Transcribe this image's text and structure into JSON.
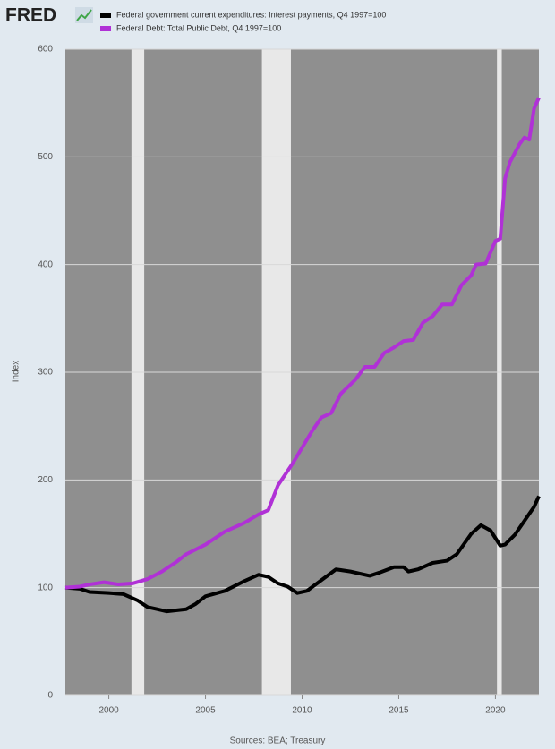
{
  "logo": "FRED",
  "chart_data": {
    "type": "line",
    "y_label": "Index",
    "source": "Sources: BEA; Treasury",
    "xlim": [
      1997.75,
      2022.25
    ],
    "xticks": [
      2000,
      2005,
      2010,
      2015,
      2020
    ],
    "ylim": [
      0,
      600
    ],
    "yticks": [
      0,
      100,
      200,
      300,
      400,
      500,
      600
    ],
    "grid": true,
    "recessions": [
      [
        2001.17,
        2001.83
      ],
      [
        2007.92,
        2009.42
      ],
      [
        2020.08,
        2020.33
      ]
    ],
    "series": [
      {
        "name": "Federal government current expenditures: Interest payments, Q4 1997=100",
        "color": "#000000",
        "x": [
          1997.75,
          1998.5,
          1999,
          2000,
          2000.75,
          2001.5,
          2002,
          2002.5,
          2003,
          2004,
          2004.5,
          2005,
          2006,
          2007,
          2007.75,
          2008.25,
          2008.75,
          2009.25,
          2009.75,
          2010.25,
          2011,
          2011.75,
          2012.5,
          2013.5,
          2014,
          2014.75,
          2015.25,
          2015.5,
          2016,
          2016.75,
          2017.5,
          2018,
          2018.75,
          2019.25,
          2019.75,
          2020.25,
          2020.5,
          2021,
          2021.5,
          2022,
          2022.25
        ],
        "values": [
          100,
          99,
          96,
          95,
          94,
          88,
          82,
          80,
          78,
          80,
          85,
          92,
          97,
          106,
          112,
          110,
          104,
          101,
          95,
          97,
          107,
          117,
          115,
          111,
          114,
          119,
          119,
          115,
          117,
          123,
          125,
          131,
          150,
          158,
          153,
          139,
          140,
          149,
          162,
          175,
          185
        ]
      },
      {
        "name": "Federal Debt: Total Public Debt, Q4 1997=100",
        "color": "#b031d6",
        "x": [
          1997.75,
          1998.5,
          1999,
          1999.75,
          2000.5,
          2001.25,
          2002,
          2002.75,
          2003.5,
          2004,
          2005,
          2005.5,
          2006,
          2007,
          2007.75,
          2008.25,
          2008.75,
          2009.5,
          2010,
          2010.5,
          2011,
          2011.5,
          2012,
          2012.75,
          2013.25,
          2013.75,
          2014.25,
          2014.75,
          2015.25,
          2015.75,
          2016.25,
          2016.75,
          2017.25,
          2017.75,
          2018.25,
          2018.75,
          2019,
          2019.5,
          2020,
          2020.25,
          2020.5,
          2020.75,
          2021.25,
          2021.5,
          2021.75,
          2022,
          2022.25
        ],
        "values": [
          100,
          101,
          103,
          105,
          103,
          104,
          108,
          115,
          124,
          131,
          140,
          146,
          152,
          160,
          168,
          172,
          195,
          215,
          230,
          245,
          258,
          262,
          280,
          293,
          305,
          305,
          318,
          323,
          329,
          330,
          346,
          352,
          363,
          363,
          381,
          390,
          400,
          401,
          422,
          424,
          480,
          495,
          512,
          518,
          516,
          545,
          555
        ]
      }
    ]
  }
}
